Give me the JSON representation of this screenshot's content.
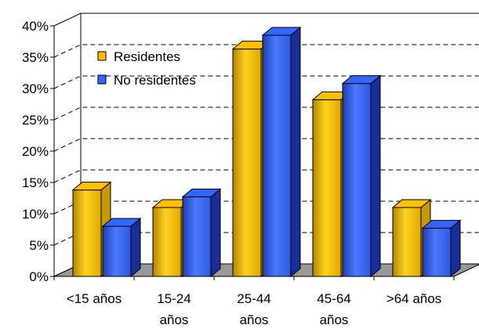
{
  "chart_data": {
    "type": "bar",
    "style": "3d-clustered",
    "categories": [
      "<15 años",
      "15-24 años",
      "25-44 años",
      "45-64 años",
      ">64 años"
    ],
    "category_lines": [
      [
        "<15 años"
      ],
      [
        "15-24",
        "años"
      ],
      [
        "25-44",
        "años"
      ],
      [
        "45-64",
        "años"
      ],
      [
        ">64 años"
      ]
    ],
    "series": [
      {
        "name": "Residentes",
        "values": [
          13.8,
          11.0,
          36.3,
          28.2,
          11.0
        ],
        "color": "#FFC000"
      },
      {
        "name": "No residentes",
        "values": [
          8.0,
          12.7,
          38.5,
          30.8,
          7.7
        ],
        "color": "#3366FF"
      }
    ],
    "y_ticks": [
      "0%",
      "5%",
      "10%",
      "15%",
      "20%",
      "25%",
      "30%",
      "35%",
      "40%"
    ],
    "ylim": [
      0,
      40
    ],
    "grid": true,
    "legend_position": "top-left"
  }
}
